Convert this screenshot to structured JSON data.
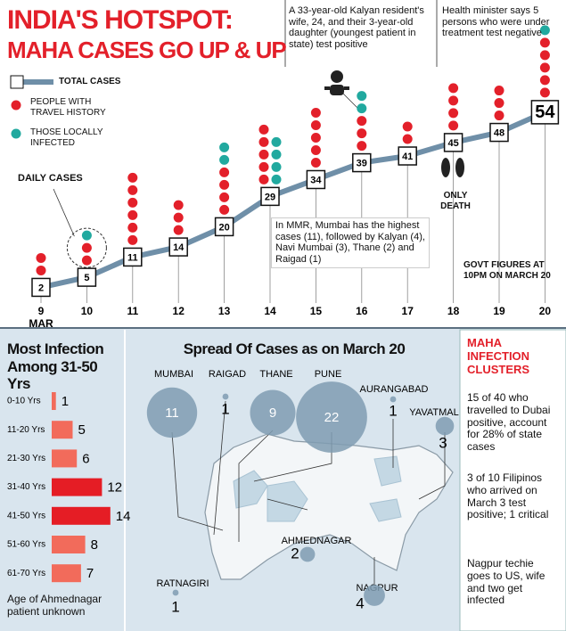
{
  "header": {
    "title": "INDIA'S HOTSPOT:",
    "subtitle": "MAHA CASES GO UP & UP"
  },
  "chart_data": [
    {
      "type": "line",
      "categories": [
        "9",
        "10",
        "11",
        "12",
        "13",
        "14",
        "15",
        "16",
        "17",
        "18",
        "19",
        "20"
      ],
      "month": "MAR",
      "series": [
        {
          "name": "TOTAL CASES",
          "color": "#6f8fa8",
          "values": [
            2,
            5,
            11,
            14,
            20,
            29,
            34,
            39,
            41,
            45,
            48,
            54
          ]
        },
        {
          "name": "PEOPLE WITH TRAVEL HISTORY",
          "color": "#e3202a",
          "values": [
            2,
            2,
            6,
            3,
            4,
            5,
            5,
            3,
            2,
            4,
            3,
            5
          ]
        },
        {
          "name": "THOSE LOCALLY INFECTED",
          "color": "#21a99f",
          "values": [
            0,
            1,
            0,
            0,
            2,
            4,
            0,
            2,
            0,
            0,
            0,
            1
          ]
        }
      ],
      "annotations": {
        "daily_cases": "DAILY CASES",
        "kalyan": "A 33-year-old Kalyan resident's wife, 24, and their 3-year-old daughter (youngest patient in state) test positive",
        "health_minister": "Health minister says 5 persons who were under treatment test negative",
        "mmr": "In MMR, Mumbai has the highest cases (11), followed by Kalyan (4), Navi Mumbai (3), Thane (2) and Raigad (1)",
        "death": "ONLY DEATH",
        "govt": "GOVT FIGURES AT 10PM ON MARCH 20"
      }
    },
    {
      "type": "bar",
      "title": "Most Infection Among 31-50 Yrs",
      "categories": [
        "0-10 Yrs",
        "11-20 Yrs",
        "21-30 Yrs",
        "31-40 Yrs",
        "41-50 Yrs",
        "51-60 Yrs",
        "61-70 Yrs"
      ],
      "values": [
        1,
        5,
        6,
        12,
        14,
        8,
        7
      ],
      "colors": [
        "#f26b5b",
        "#f26b5b",
        "#f26b5b",
        "#e51d25",
        "#e51d25",
        "#f26b5b",
        "#f26b5b"
      ],
      "note": "Age of Ahmednagar patient unknown"
    },
    {
      "type": "bubble",
      "title": "Spread Of Cases as on March 20",
      "categories": [
        "MUMBAI",
        "RAIGAD",
        "THANE",
        "PUNE",
        "AURANGABAD",
        "YAVATMAL",
        "AHMEDNAGAR",
        "RATNAGIRI",
        "NAGPUR"
      ],
      "values": [
        11,
        1,
        9,
        22,
        1,
        3,
        2,
        1,
        4
      ],
      "color": "#7f9cb2"
    }
  ],
  "clusters": {
    "title": "MAHA INFECTION CLUSTERS",
    "items": [
      "15 of 40 who travelled to Dubai positive, account for 28% of state cases",
      "3 of 10 Filipinos who arrived on March 3 test positive; 1 critical",
      "Nagpur techie goes to US, wife and two get infected"
    ]
  }
}
